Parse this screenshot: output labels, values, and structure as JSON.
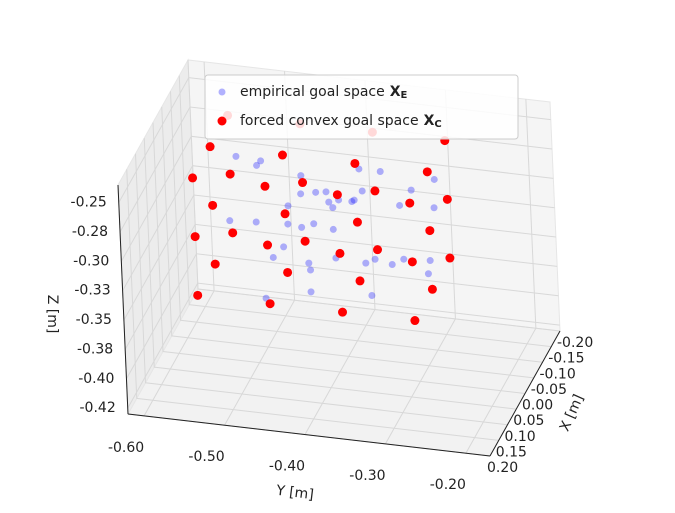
{
  "chart_data": {
    "type": "scatter3d",
    "x_label": "X [m]",
    "y_label": "Y [m]",
    "z_label": "Z [m]",
    "xlim": [
      -0.2,
      0.2
    ],
    "ylim": [
      -0.62,
      -0.17
    ],
    "zlim": [
      -0.43,
      -0.235
    ],
    "xticks": [
      {
        "value": -0.2,
        "label": "-0.20"
      },
      {
        "value": -0.15,
        "label": "-0.15"
      },
      {
        "value": -0.1,
        "label": "-0.10"
      },
      {
        "value": -0.05,
        "label": "-0.05"
      },
      {
        "value": 0,
        "label": "0.00"
      },
      {
        "value": 0.05,
        "label": "0.05"
      },
      {
        "value": 0.1,
        "label": "0.10"
      },
      {
        "value": 0.15,
        "label": "0.15"
      },
      {
        "value": 0.2,
        "label": "0.20"
      }
    ],
    "yticks": [
      {
        "value": -0.6,
        "label": "-0.60"
      },
      {
        "value": -0.5,
        "label": "-0.50"
      },
      {
        "value": -0.4,
        "label": "-0.40"
      },
      {
        "value": -0.3,
        "label": "-0.30"
      },
      {
        "value": -0.2,
        "label": "-0.20"
      }
    ],
    "zticks": [
      {
        "value": -0.425,
        "label": "-0.42"
      },
      {
        "value": -0.4,
        "label": "-0.40"
      },
      {
        "value": -0.375,
        "label": "-0.38"
      },
      {
        "value": -0.35,
        "label": "-0.35"
      },
      {
        "value": -0.325,
        "label": "-0.33"
      },
      {
        "value": -0.3,
        "label": "-0.30"
      },
      {
        "value": -0.275,
        "label": "-0.28"
      },
      {
        "value": -0.25,
        "label": "-0.25"
      }
    ],
    "grid": true,
    "legend": "upper center",
    "series": [
      {
        "name": "empirical goal space",
        "symbol": "X",
        "subscript": "E",
        "color": "#0000ff",
        "opacity": 0.3,
        "x": [
          0.02,
          -0.05,
          0.08,
          0,
          -0.03,
          0.05,
          0.1,
          -0.08,
          0.03,
          -0.01,
          0.06,
          -0.06,
          0.12,
          0.01,
          -0.04,
          0.04,
          -0.1,
          0.09,
          -0.02,
          0.07,
          0,
          -0.07,
          0.11,
          0.02,
          -0.05,
          0.05,
          -0.03,
          0.08,
          -0.09,
          0.03,
          0.06,
          -0.01,
          0.14,
          -0.12,
          0,
          0.04,
          -0.06,
          0.09,
          0.01,
          -0.04
        ],
        "y": [
          -0.42,
          -0.45,
          -0.38,
          -0.4,
          -0.5,
          -0.35,
          -0.44,
          -0.32,
          -0.47,
          -0.41,
          -0.3,
          -0.39,
          -0.46,
          -0.36,
          -0.43,
          -0.52,
          -0.34,
          -0.41,
          -0.37,
          -0.48,
          -0.44,
          -0.29,
          -0.33,
          -0.4,
          -0.53,
          -0.42,
          -0.38,
          -0.31,
          -0.36,
          -0.45,
          -0.27,
          -0.49,
          -0.4,
          -0.3,
          -0.35,
          -0.43,
          -0.47,
          -0.26,
          -0.39,
          -0.41
        ],
        "z": [
          -0.3,
          -0.28,
          -0.31,
          -0.29,
          -0.27,
          -0.32,
          -0.3,
          -0.29,
          -0.33,
          -0.28,
          -0.31,
          -0.3,
          -0.34,
          -0.27,
          -0.29,
          -0.3,
          -0.31,
          -0.32,
          -0.26,
          -0.29,
          -0.31,
          -0.3,
          -0.33,
          -0.28,
          -0.27,
          -0.35,
          -0.29,
          -0.31,
          -0.28,
          -0.3,
          -0.32,
          -0.26,
          -0.3,
          -0.29,
          -0.33,
          -0.27,
          -0.31,
          -0.3,
          -0.28,
          -0.32
        ]
      },
      {
        "name": "forced convex goal space",
        "symbol": "X",
        "subscript": "C",
        "color": "#ff0000",
        "opacity": 1,
        "x": [
          -0.1,
          0,
          0.1,
          -0.1,
          0,
          0.1,
          -0.1,
          0,
          0.1,
          -0.1,
          0,
          0.1,
          -0.1,
          0,
          0.1,
          -0.1,
          0,
          0.1,
          -0.1,
          0,
          0.1,
          -0.1,
          0,
          0.1,
          -0.1,
          0,
          0.1,
          -0.1,
          0,
          0.1,
          -0.1,
          0,
          0.1,
          -0.1,
          0,
          0.1
        ],
        "y": [
          -0.55,
          -0.55,
          -0.55,
          -0.46,
          -0.46,
          -0.46,
          -0.37,
          -0.37,
          -0.37,
          -0.28,
          -0.28,
          -0.28,
          -0.55,
          -0.55,
          -0.55,
          -0.46,
          -0.46,
          -0.46,
          -0.37,
          -0.37,
          -0.37,
          -0.28,
          -0.28,
          -0.28,
          -0.55,
          -0.55,
          -0.55,
          -0.46,
          -0.46,
          -0.46,
          -0.37,
          -0.37,
          -0.37,
          -0.28,
          -0.28,
          -0.28
        ],
        "z": [
          -0.35,
          -0.35,
          -0.35,
          -0.35,
          -0.35,
          -0.35,
          -0.35,
          -0.35,
          -0.35,
          -0.35,
          -0.35,
          -0.35,
          -0.3,
          -0.3,
          -0.3,
          -0.3,
          -0.3,
          -0.3,
          -0.3,
          -0.3,
          -0.3,
          -0.3,
          -0.3,
          -0.3,
          -0.25,
          -0.25,
          -0.25,
          -0.25,
          -0.25,
          -0.25,
          -0.25,
          -0.25,
          -0.25,
          -0.25,
          -0.25,
          -0.25
        ]
      }
    ]
  }
}
